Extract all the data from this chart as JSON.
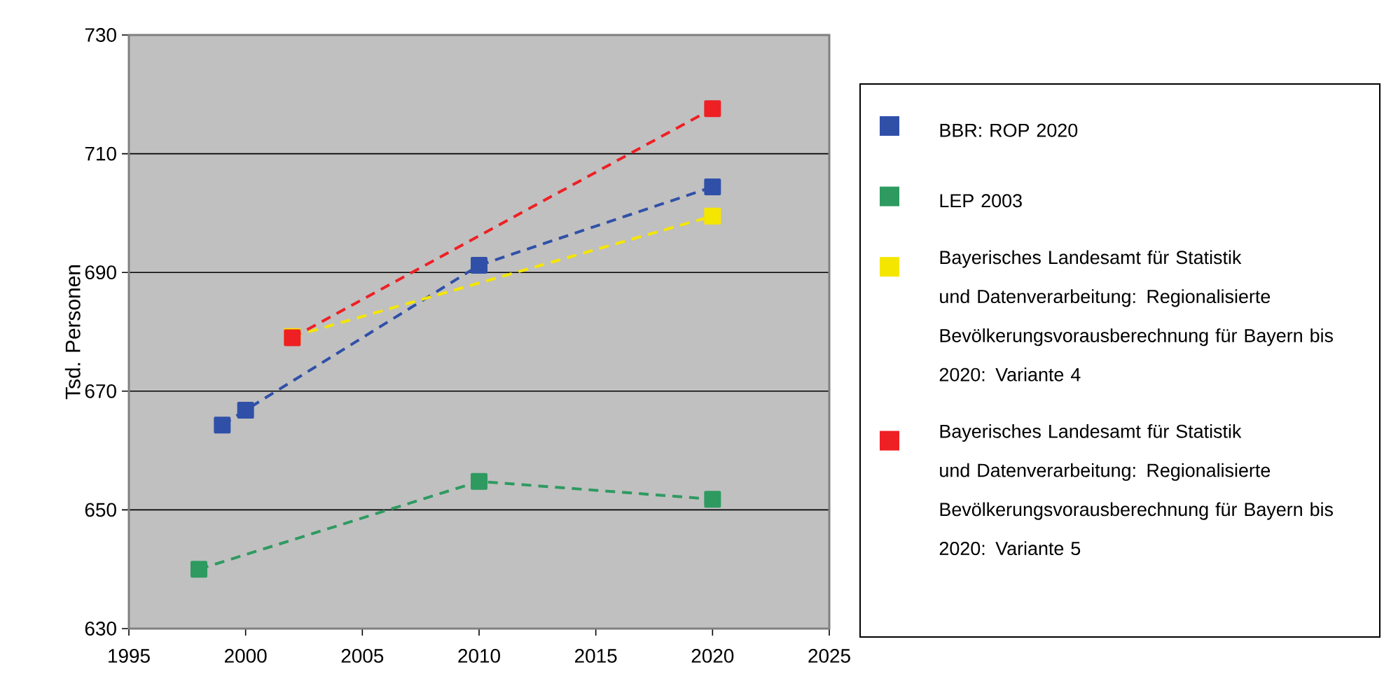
{
  "chart_data": {
    "type": "line",
    "ylabel": "Tsd. Personen",
    "xlim": [
      1995,
      2025
    ],
    "xticks": [
      1995,
      2000,
      2005,
      2010,
      2015,
      2020,
      2025
    ],
    "ylim": [
      630,
      730
    ],
    "yticks": [
      630,
      650,
      670,
      690,
      710,
      730
    ],
    "grid": "y",
    "legend": "right",
    "marker": "square",
    "line_style": "dashed",
    "series": [
      {
        "name": "BBR: ROP 2020",
        "color": "#3050a8",
        "x": [
          1999,
          2000,
          2010,
          2020
        ],
        "values": [
          664.3,
          666.8,
          691.2,
          704.4
        ]
      },
      {
        "name": "LEP 2003",
        "color": "#2e9a60",
        "x": [
          1998,
          2010,
          2020
        ],
        "values": [
          640,
          654.8,
          651.8
        ]
      },
      {
        "name": "Bayerisches Landesamt für Statistik und Datenverarbeitung: Regionalisierte Bevölkerungsvorausberechnung für Bayern bis 2020: Variante 4",
        "color": "#f5e600",
        "x": [
          2002,
          2020
        ],
        "values": [
          679.2,
          699.5
        ]
      },
      {
        "name": "Bayerisches Landesamt für Statistik und Datenverarbeitung: Regionalisierte Bevölkerungsvorausberechnung für Bayern bis 2020: Variante 5",
        "color": "#ee2024",
        "x": [
          2002,
          2020
        ],
        "values": [
          679,
          717.6
        ]
      }
    ]
  }
}
